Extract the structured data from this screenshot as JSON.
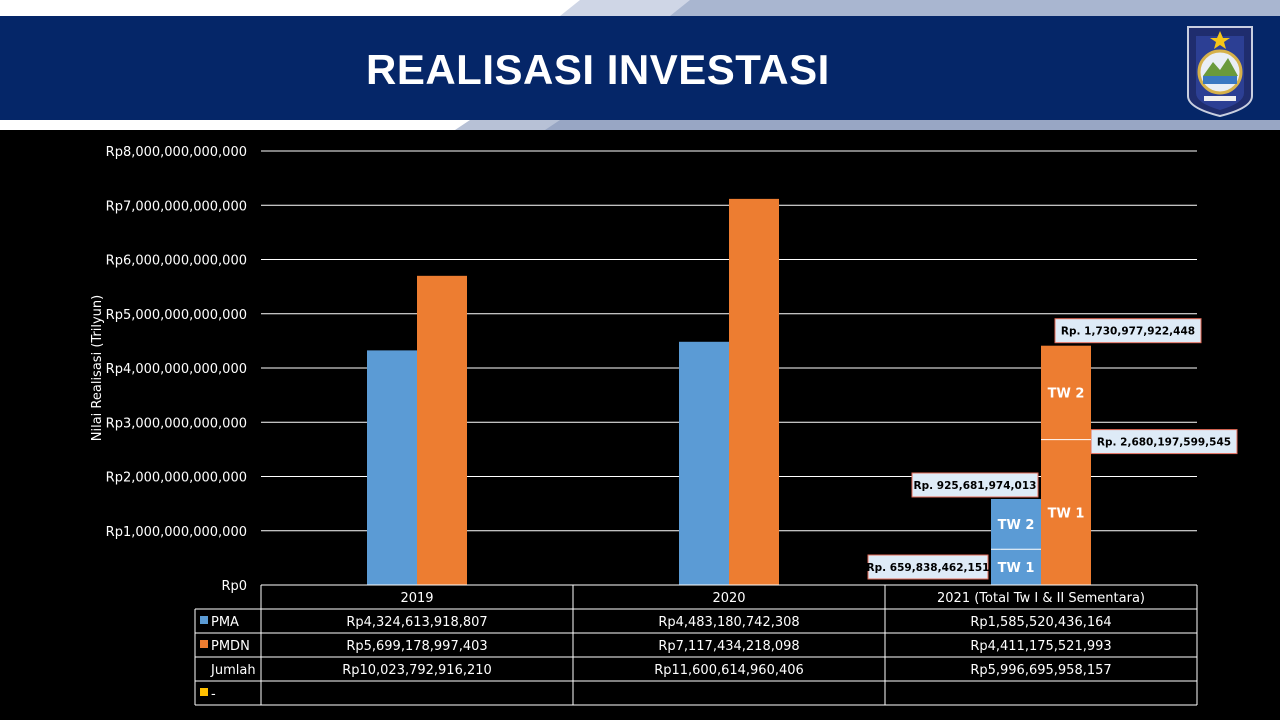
{
  "header": {
    "title": "REALISASI INVESTASI"
  },
  "colors": {
    "navy": "#052668",
    "pma": "#5B9BD5",
    "pmdn": "#ED7D31",
    "dash": "#FFC000",
    "callout_bg": "#DEEBF7",
    "callout_border": "#E46C5A"
  },
  "chart_data": {
    "type": "bar",
    "title": "",
    "ylabel": "Nilai Realisasi (Trilyun)",
    "ylim": [
      0,
      8000000000000
    ],
    "yticks": [
      0,
      1000000000000,
      2000000000000,
      3000000000000,
      4000000000000,
      5000000000000,
      6000000000000,
      7000000000000,
      8000000000000
    ],
    "ytick_labels": [
      "Rp0",
      "Rp1,000,000,000,000",
      "Rp2,000,000,000,000",
      "Rp3,000,000,000,000",
      "Rp4,000,000,000,000",
      "Rp5,000,000,000,000",
      "Rp6,000,000,000,000",
      "Rp7,000,000,000,000",
      "Rp8,000,000,000,000"
    ],
    "grid": true,
    "categories": [
      "2019",
      "2020",
      "2021 (Total Tw I & II Sementara)"
    ],
    "series": [
      {
        "name": "PMA",
        "values": [
          4324613918807,
          4483180742308,
          1585520436164
        ],
        "display": [
          "Rp4,324,613,918,807",
          "Rp4,483,180,742,308",
          "Rp1,585,520,436,164"
        ]
      },
      {
        "name": "PMDN",
        "values": [
          5699178997403,
          7117434218098,
          4411175521993
        ],
        "display": [
          "Rp5,699,178,997,403",
          "Rp7,117,434,218,098",
          "Rp4,411,175,521,993"
        ]
      }
    ],
    "table_rows": [
      {
        "name": "Jumlah",
        "display": [
          "Rp10,023,792,916,210",
          "Rp11,600,614,960,406",
          "Rp5,996,695,958,157"
        ]
      },
      {
        "name": "-",
        "display": [
          "",
          "",
          ""
        ]
      }
    ],
    "breakdown_2021": {
      "PMA": [
        {
          "label": "TW 1",
          "value": 659838462151,
          "callout": "Rp. 659,838,462,151"
        },
        {
          "label": "TW 2",
          "value": 925681974013,
          "callout": "Rp. 925,681,974,013"
        }
      ],
      "PMDN": [
        {
          "label": "TW 1",
          "value": 2680197599545,
          "callout": "Rp. 2,680,197,599,545"
        },
        {
          "label": "TW 2",
          "value": 1730977922448,
          "callout": "Rp. 1,730,977,922,448"
        }
      ]
    }
  }
}
